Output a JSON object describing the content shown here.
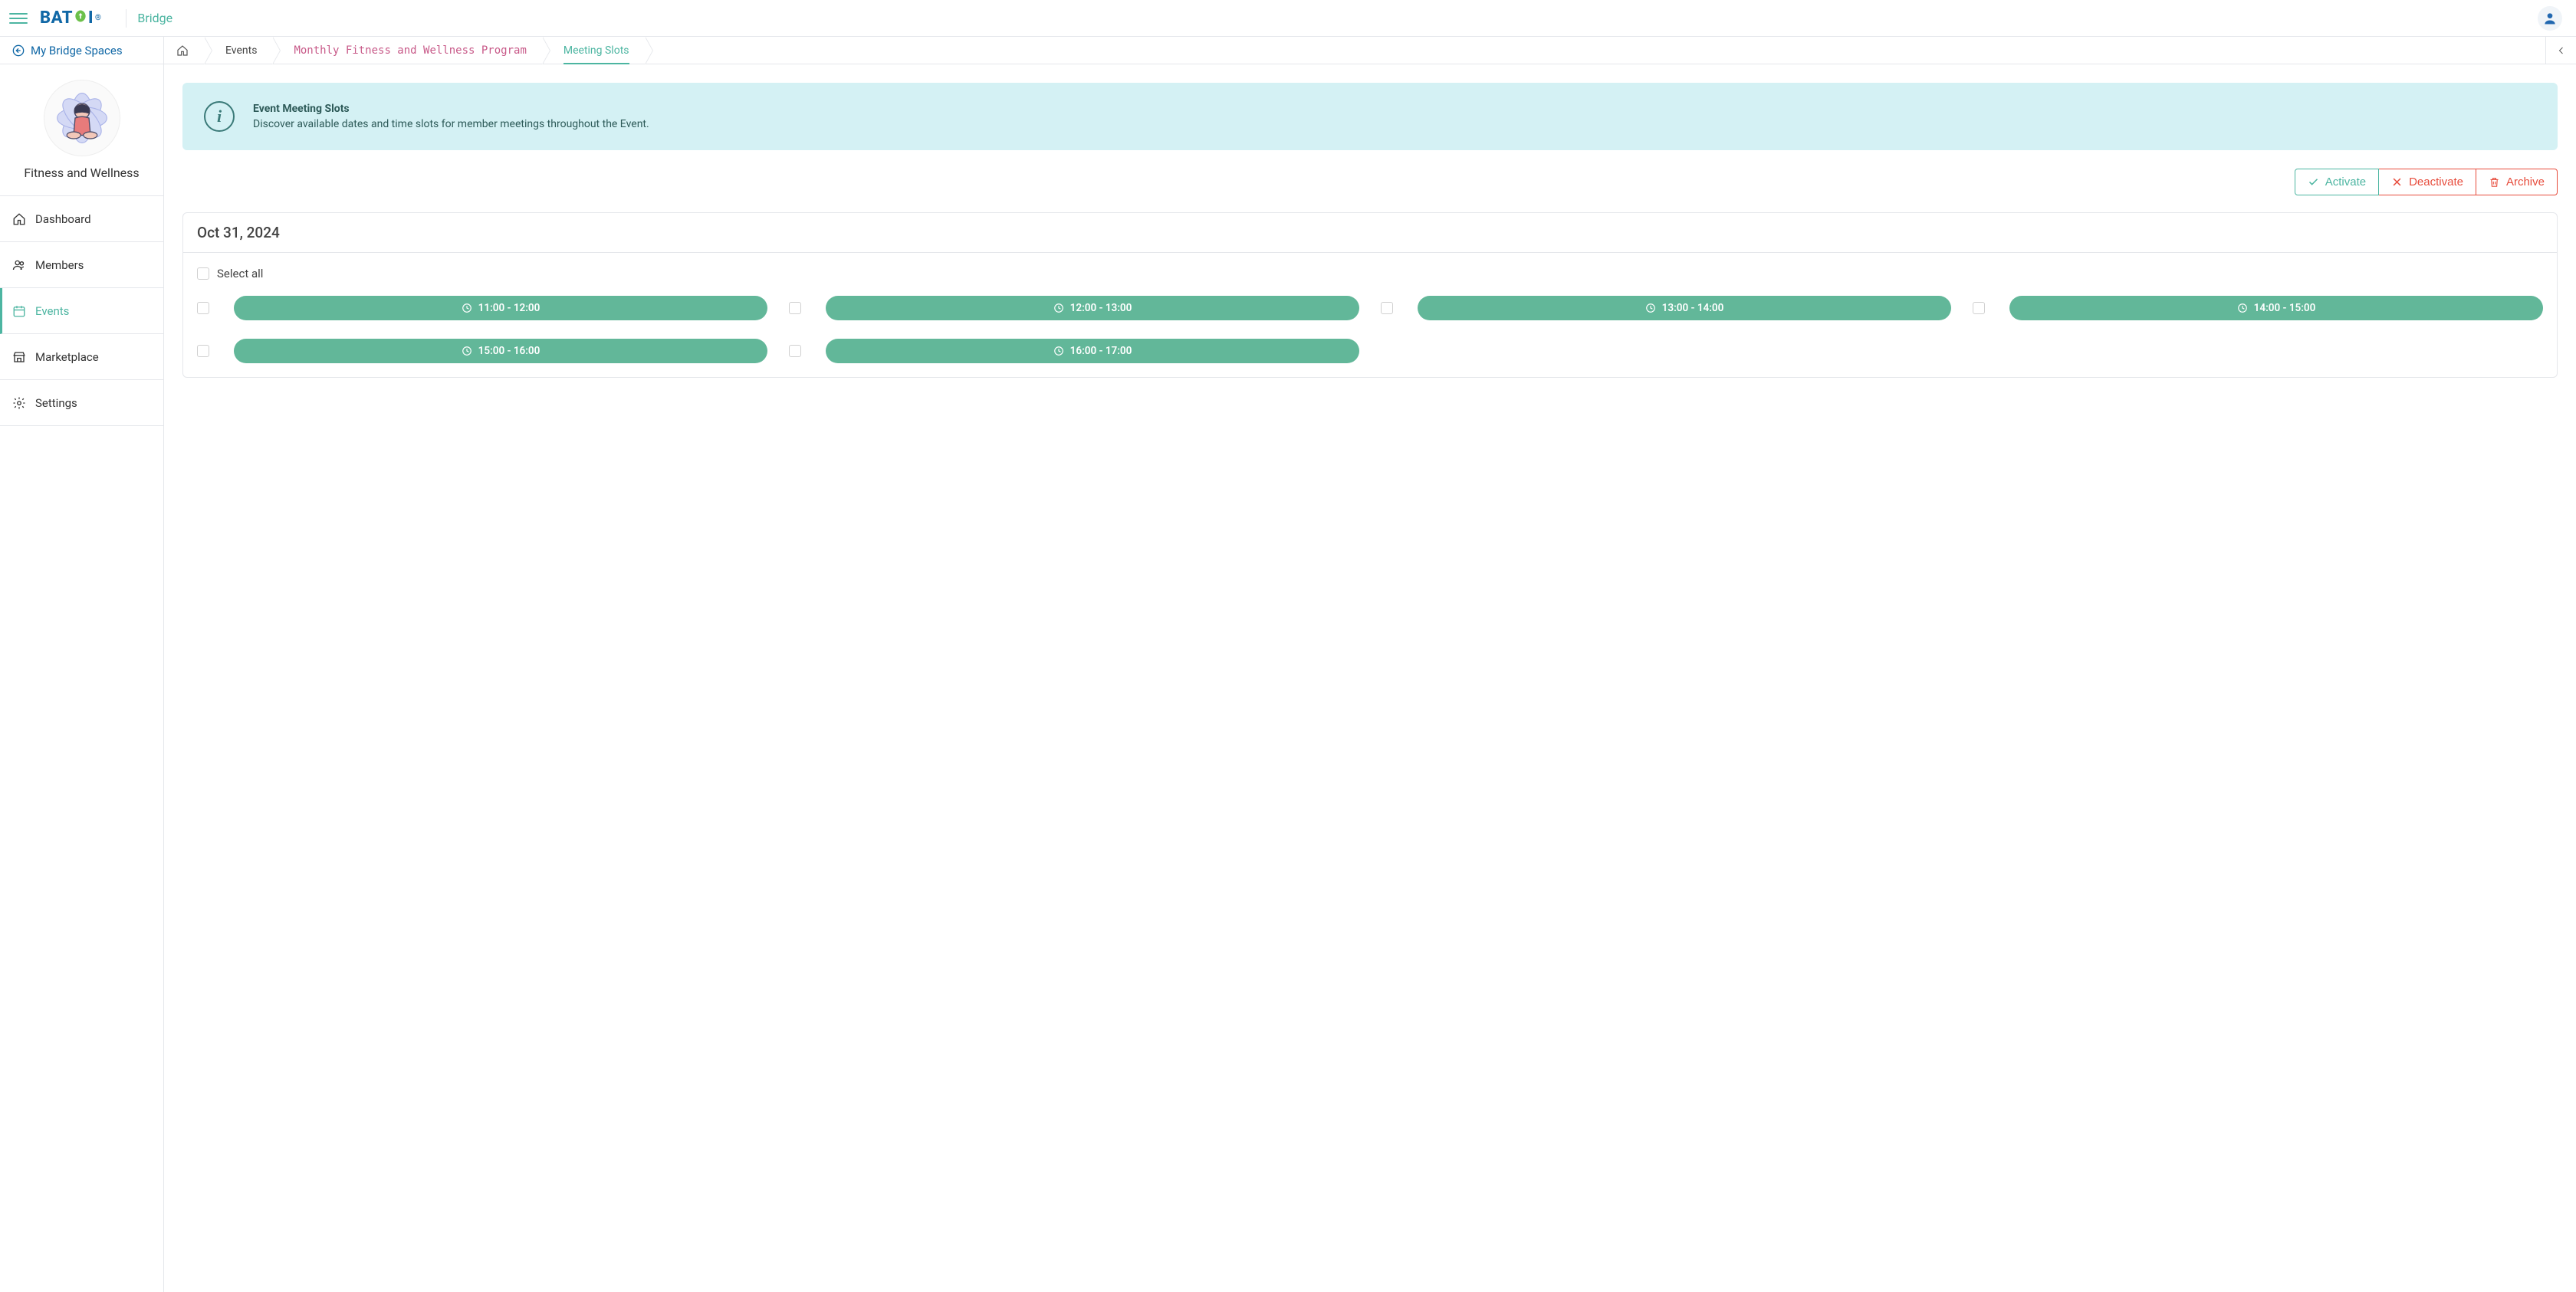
{
  "topbar": {
    "logo_text": "BATOI",
    "brand_sub": "Bridge"
  },
  "sidebar": {
    "back_label": "My Bridge Spaces",
    "space_name": "Fitness and Wellness",
    "nav": [
      {
        "label": "Dashboard",
        "icon": "home",
        "active": false
      },
      {
        "label": "Members",
        "icon": "users",
        "active": false
      },
      {
        "label": "Events",
        "icon": "calendar",
        "active": true
      },
      {
        "label": "Marketplace",
        "icon": "store",
        "active": false
      },
      {
        "label": "Settings",
        "icon": "gear",
        "active": false
      }
    ]
  },
  "breadcrumbs": {
    "items": [
      {
        "label": "",
        "type": "home"
      },
      {
        "label": "Events",
        "type": "events"
      },
      {
        "label": "Monthly Fitness and Wellness Program",
        "type": "program"
      },
      {
        "label": "Meeting Slots",
        "type": "current"
      }
    ]
  },
  "banner": {
    "title": "Event Meeting Slots",
    "desc": "Discover available dates and time slots for member meetings throughout the Event."
  },
  "actions": {
    "activate": "Activate",
    "deactivate": "Deactivate",
    "archive": "Archive"
  },
  "card": {
    "date_heading": "Oct 31, 2024",
    "select_all": "Select all",
    "slots": [
      "11:00 - 12:00",
      "12:00 - 13:00",
      "13:00 - 14:00",
      "14:00 - 15:00",
      "15:00 - 16:00",
      "16:00 - 17:00"
    ]
  },
  "colors": {
    "accent_teal": "#4cb5a1",
    "slot_green": "#62b799",
    "banner_bg": "#d4f1f4",
    "banner_text": "#2d5a58",
    "danger": "#e74c3c",
    "logo_blue": "#1168a6",
    "border": "#e5e7eb"
  }
}
